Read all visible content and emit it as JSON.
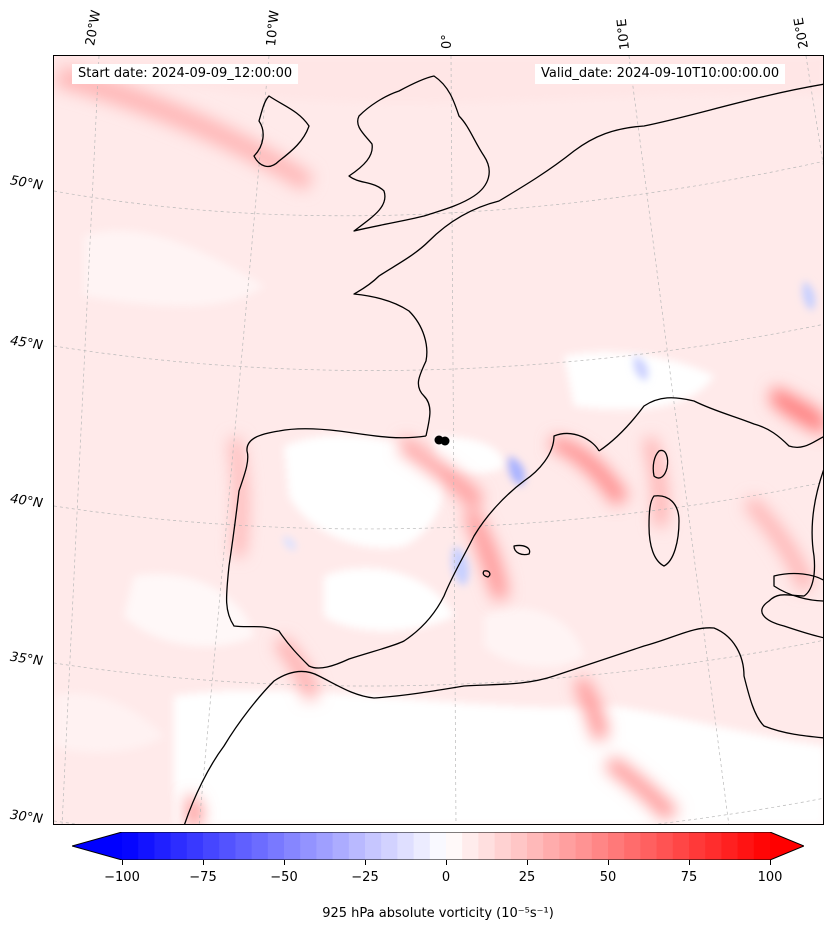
{
  "map": {
    "start_date_text": "Start date: 2024-09-09_12:00:00",
    "valid_date_text": "Valid_date: 2024-09-10T10:00:00.00",
    "lon_labels": [
      "20°W",
      "10°W",
      "0°",
      "10°E",
      "20°E"
    ],
    "lat_labels": [
      "50°N",
      "45°N",
      "40°N",
      "35°N",
      "30°N"
    ],
    "coastline_color": "#000000",
    "marker_color": "#000000"
  },
  "colorbar": {
    "label": "925 hPa absolute vorticity (10⁻⁵s⁻¹)",
    "ticks": [
      "−100",
      "−75",
      "−50",
      "−25",
      "0",
      "25",
      "50",
      "75",
      "100"
    ],
    "min": -100,
    "max": 100,
    "negative_color": "#0000ff",
    "zero_color": "#ffffff",
    "positive_color": "#ff0000"
  }
}
